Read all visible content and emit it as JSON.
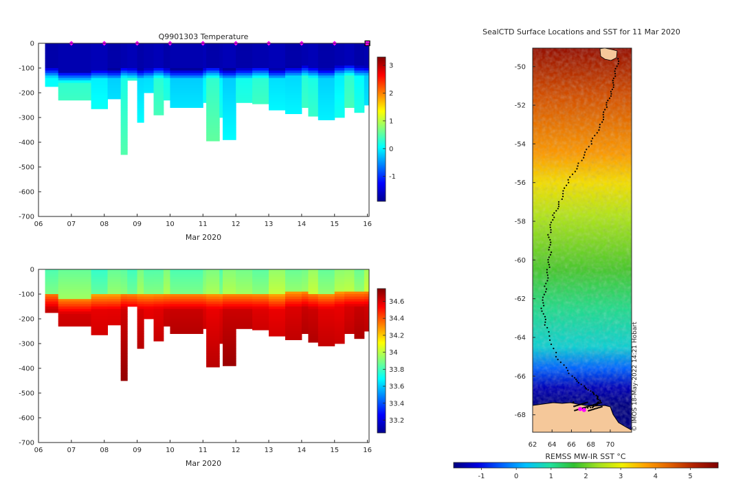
{
  "figure_colors": {
    "jet": [
      "#00008f",
      "#0000ff",
      "#0080ff",
      "#00ffff",
      "#80ff80",
      "#ffff00",
      "#ff8000",
      "#ff0000",
      "#800000"
    ],
    "sst_scale": [
      "#00007f",
      "#0000e0",
      "#0060ff",
      "#00c0ff",
      "#20e0a0",
      "#30c030",
      "#a0e020",
      "#f0f000",
      "#ffa000",
      "#e06000",
      "#b02000",
      "#800000"
    ],
    "land": "#f5c89a",
    "marker": "#ff00ff",
    "track": "#000000"
  },
  "chart_data": [
    {
      "type": "heatmap",
      "title": "Q9901303  Temperature",
      "xlabel": "Mar 2020",
      "ylabel": "",
      "x_tick_labels": [
        "06",
        "07",
        "08",
        "09",
        "10",
        "11",
        "12",
        "13",
        "14",
        "15",
        "16"
      ],
      "y_tick_labels": [
        "0",
        "-100",
        "-200",
        "-300",
        "-400",
        "-500",
        "-600",
        "-700"
      ],
      "xlim": [
        6,
        16.05
      ],
      "ylim": [
        -700,
        0
      ],
      "colorbar": {
        "min": -1.9,
        "max": 3.3,
        "tick_labels": [
          "3",
          "2",
          "1",
          "0",
          "-1"
        ],
        "ticks": [
          3,
          2,
          1,
          0,
          -1
        ]
      },
      "profiles": {
        "day": [
          6.2,
          6.6,
          7.6,
          8.1,
          8.5,
          8.7,
          9.0,
          9.2,
          9.5,
          9.8,
          10.0,
          11.0,
          11.1,
          11.5,
          11.6,
          12.0,
          12.5,
          13.0,
          13.5,
          14.0,
          14.2,
          14.5,
          15.0,
          15.3,
          15.6,
          15.9
        ],
        "max_depth": [
          -175,
          -230,
          -265,
          -225,
          -450,
          -150,
          -320,
          -200,
          -290,
          -230,
          -260,
          -240,
          -395,
          -300,
          -390,
          -240,
          -245,
          -270,
          -285,
          -260,
          -295,
          -310,
          -300,
          -260,
          -280,
          -250
        ],
        "mixed_layer": [
          -95,
          -115,
          -100,
          -100,
          -95,
          -100,
          -100,
          -95,
          -95,
          -100,
          -100,
          -95,
          -95,
          -100,
          -100,
          -100,
          -95,
          -100,
          -90,
          -90,
          -95,
          -95,
          -85,
          -85,
          -90,
          -85
        ]
      },
      "surface_markers": [
        7,
        8,
        9,
        10,
        11,
        12,
        13,
        14,
        15,
        16
      ]
    },
    {
      "type": "heatmap",
      "title": "",
      "xlabel": "Mar 2020",
      "ylabel": "",
      "x_tick_labels": [
        "06",
        "07",
        "08",
        "09",
        "10",
        "11",
        "12",
        "13",
        "14",
        "15",
        "16"
      ],
      "y_tick_labels": [
        "0",
        "-100",
        "-200",
        "-300",
        "-400",
        "-500",
        "-600",
        "-700"
      ],
      "xlim": [
        6,
        16.05
      ],
      "ylim": [
        -700,
        0
      ],
      "colorbar": {
        "min": 33.05,
        "max": 34.75,
        "tick_labels": [
          "34.6",
          "34.4",
          "34.2",
          "34",
          "33.8",
          "33.6",
          "33.4",
          "33.2"
        ],
        "ticks": [
          34.6,
          34.4,
          34.2,
          34.0,
          33.8,
          33.6,
          33.4,
          33.2
        ]
      }
    },
    {
      "type": "heatmap",
      "title": "SealCTD Surface Locations and SST for 11 Mar 2020",
      "xlabel": "",
      "ylabel": "",
      "x_tick_labels": [
        "62",
        "64",
        "66",
        "68",
        "70"
      ],
      "x_ticks": [
        62,
        64,
        66,
        68,
        70
      ],
      "y_tick_labels": [
        "-50",
        "-52",
        "-54",
        "-56",
        "-58",
        "-60",
        "-62",
        "-64",
        "-66",
        "-68"
      ],
      "y_ticks": [
        -50,
        -52,
        -54,
        -56,
        -58,
        -60,
        -62,
        -64,
        -66,
        -68
      ],
      "xlim": [
        62,
        72.2
      ],
      "ylim": [
        -68.9,
        -49.05
      ],
      "sst_gradient": [
        {
          "lat": -49.05,
          "temp": 5.5
        },
        {
          "lat": -51.5,
          "temp": 4.6
        },
        {
          "lat": -54.5,
          "temp": 3.8
        },
        {
          "lat": -56.0,
          "temp": 3.2
        },
        {
          "lat": -57.7,
          "temp": 2.5
        },
        {
          "lat": -60.5,
          "temp": 1.8
        },
        {
          "lat": -62.5,
          "temp": 1.1
        },
        {
          "lat": -64.5,
          "temp": 0.6
        },
        {
          "lat": -65.6,
          "temp": -0.4
        },
        {
          "lat": -66.6,
          "temp": -1.4
        },
        {
          "lat": -67.5,
          "temp": -1.8
        }
      ],
      "colorbar": {
        "label": "REMSS MW-IR SST °C",
        "min": -1.8,
        "max": 5.8,
        "tick_labels": [
          "-1",
          "0",
          "1",
          "2",
          "3",
          "4",
          "5"
        ],
        "ticks": [
          -1,
          0,
          1,
          2,
          3,
          4,
          5
        ]
      },
      "track": {
        "lon": [
          70.8,
          70.5,
          70.1,
          69.6,
          69.0,
          68.0,
          66.8,
          65.6,
          64.8,
          64.1,
          63.7,
          63.8,
          63.6,
          63.3,
          63.0,
          63.4,
          64.5,
          66.0,
          67.5,
          68.5,
          69.0,
          68.2,
          67.0
        ],
        "lat": [
          -49.6,
          -50.5,
          -51.3,
          -52.1,
          -53.0,
          -54.0,
          -55.0,
          -56.0,
          -57.0,
          -57.8,
          -58.7,
          -59.6,
          -60.5,
          -61.5,
          -62.5,
          -63.5,
          -65.0,
          -66.0,
          -66.6,
          -67.0,
          -67.3,
          -67.6,
          -67.7
        ]
      },
      "recent_positions": {
        "lon": [
          66.9,
          67.3
        ],
        "lat": [
          -67.7,
          -67.75
        ]
      },
      "watermark": "© IMOS 18-May-2022 14:21 Hobart"
    }
  ]
}
